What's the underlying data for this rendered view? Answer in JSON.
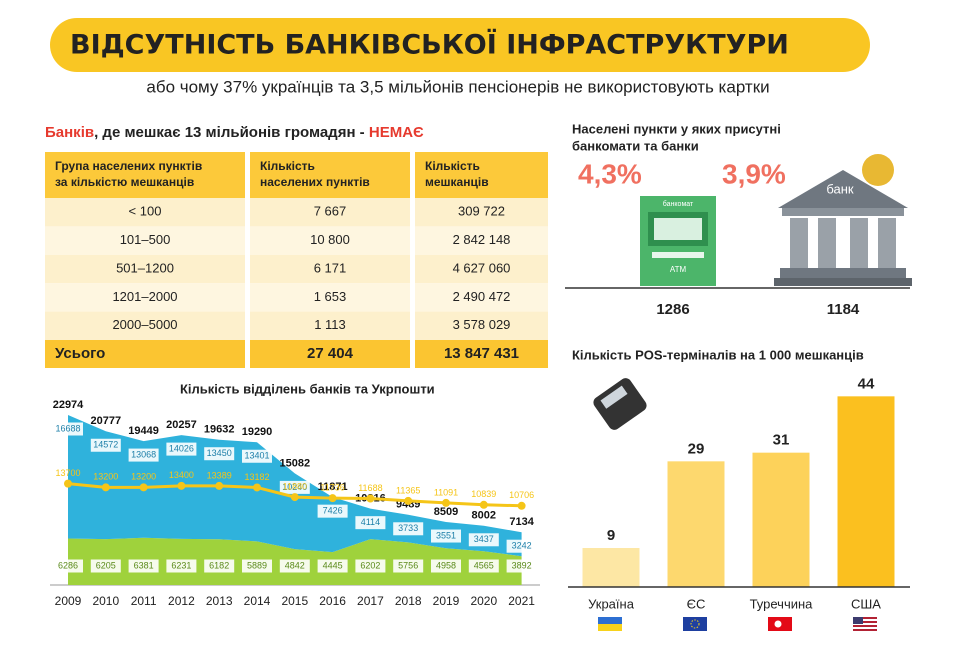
{
  "header": {
    "title": "ВІДСУТНІСТЬ БАНКІВСЬКОЇ ІНФРАСТРУКТУРИ",
    "subtitle": "або чому 37% українців та 3,5 мільйонів пенсіонерів не використовують картки"
  },
  "table": {
    "title": [
      "Банків",
      ", де мешкає 13 мільйонів громадян - ",
      "НЕМАЄ"
    ],
    "columns": [
      [
        "Група населених пунктів",
        "за кількістю мешканців"
      ],
      [
        "Кількість",
        "населених пунктів"
      ],
      [
        "Кількість",
        "мешканців"
      ]
    ],
    "rows": [
      [
        "< 100",
        "7 667",
        "309 722"
      ],
      [
        "101–500",
        "10 800",
        "2 842 148"
      ],
      [
        "501–1200",
        "6 171",
        "4 627 060"
      ],
      [
        "1201–2000",
        "1 653",
        "2 490 472"
      ],
      [
        "2000–5000",
        "1 113",
        "3 578 029"
      ]
    ],
    "total": [
      "Усього",
      "27 404",
      "13 847 431"
    ]
  },
  "infrastructure": {
    "title": [
      "Населені пункти у яких присутні",
      "банкомати та банки"
    ],
    "atm": {
      "percent": "4,3%",
      "count": "1286",
      "sign": "банкомат",
      "label": "ATM"
    },
    "bank": {
      "percent": "3,9%",
      "count": "1184",
      "sign": "банк"
    }
  },
  "chart_data": [
    {
      "type": "area",
      "title": "Кількість відділень банків та Укрпошти",
      "categories": [
        "2009",
        "2010",
        "2011",
        "2012",
        "2013",
        "2014",
        "2015",
        "2016",
        "2017",
        "2018",
        "2019",
        "2020",
        "2021"
      ],
      "ylim": [
        0,
        25000
      ],
      "series": [
        {
          "kind": "area",
          "color": "#9fd23c",
          "values": [
            6286,
            6205,
            6381,
            6231,
            6182,
            5889,
            4842,
            4445,
            6202,
            5756,
            4958,
            4565,
            3892
          ]
        },
        {
          "kind": "area",
          "color": "#2fb2dc",
          "values": [
            16688,
            14572,
            13068,
            14026,
            13450,
            13401,
            10240,
            7426,
            4114,
            3733,
            3551,
            3437,
            3242
          ]
        },
        {
          "kind": "labels",
          "color": "#111111",
          "values": [
            22974,
            20777,
            19449,
            20257,
            19632,
            19290,
            15082,
            11871,
            10316,
            9489,
            8509,
            8002,
            7134
          ]
        },
        {
          "kind": "line",
          "color": "#f5c518",
          "values": [
            13700,
            13200,
            13200,
            13400,
            13389,
            13182,
            11880,
            11736,
            11688,
            11365,
            11091,
            10839,
            10706
          ]
        }
      ]
    },
    {
      "type": "bar",
      "title": "Кількість POS-терміналів на 1 000 мешканців",
      "categories": [
        "Україна",
        "ЄС",
        "Туреччина",
        "США"
      ],
      "values": [
        9,
        29,
        31,
        44
      ],
      "colors": [
        "#fde7a4",
        "#fdd86e",
        "#fdd25a",
        "#fbc01f"
      ],
      "ylim": [
        0,
        45
      ]
    }
  ]
}
